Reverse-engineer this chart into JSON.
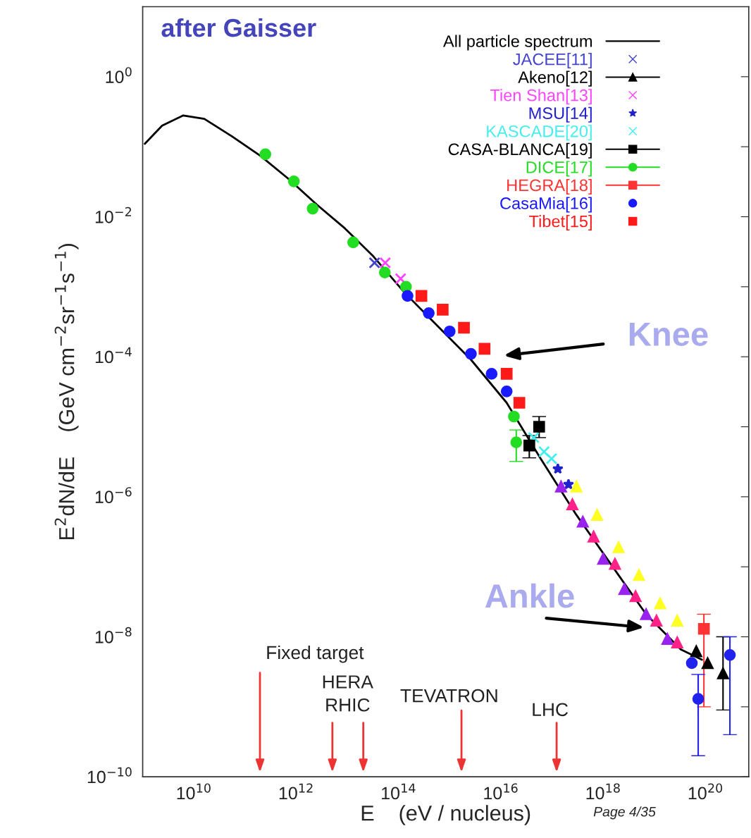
{
  "chart_data": {
    "type": "scatter",
    "title": "after Gaisser",
    "xlabel": "E    (eV / nucleus)",
    "ylabel": "E$^{2}$dN/dE    (GeV cm$^{−2}$sr$^{−1}$s$^{−1}$)",
    "log": "xy",
    "grid": false,
    "legend": "top right",
    "xlim": [
      1000000000.0,
      7e+20
    ],
    "ylim": [
      1e-10,
      10
    ],
    "xticks": [
      {
        "value": 10000000000.0,
        "label": "10$^{10}$"
      },
      {
        "value": 1000000000000.0,
        "label": "10$^{12}$"
      },
      {
        "value": 100000000000000.0,
        "label": "10$^{14}$"
      },
      {
        "value": 1e+16,
        "label": "10$^{16}$"
      },
      {
        "value": 1e+18,
        "label": "10$^{18}$"
      },
      {
        "value": 1e+20,
        "label": "10$^{20}$"
      }
    ],
    "yticks": [
      {
        "value": 1e-10,
        "label": "10$^{−10}$"
      },
      {
        "value": 1e-09,
        "label": null
      },
      {
        "value": 1e-08,
        "label": "10$^{−8}$"
      },
      {
        "value": 1e-07,
        "label": null
      },
      {
        "value": 1e-06,
        "label": "10$^{−6}$"
      },
      {
        "value": 1e-05,
        "label": null
      },
      {
        "value": 0.0001,
        "label": "10$^{−4}$"
      },
      {
        "value": 0.001,
        "label": null
      },
      {
        "value": 0.01,
        "label": "10$^{−2}$"
      },
      {
        "value": 0.1,
        "label": null
      },
      {
        "value": 1,
        "label": "10$^{0}$"
      }
    ],
    "series": [
      {
        "name": "All particle spectrum",
        "type": "line",
        "color": "#000000",
        "marker": "none",
        "line_style": "solid",
        "x": [
          1100000000.0,
          2400000000.0,
          6200000000.0,
          16000000000.0,
          56000000000.0,
          200000000000.0,
          700000000000.0,
          2500000000000.0,
          9000000000000.0,
          31000000000000.0,
          130000000000000.0,
          540000000000000.0,
          2600000000000000.0,
          1.3e+16,
          6e+16,
          3e+17,
          1.4e+18,
          6.9e+18,
          3.3e+19,
          8.5e+19
        ],
        "values": [
          0.11,
          0.2,
          0.28,
          0.25,
          0.14,
          0.074,
          0.035,
          0.015,
          0.0068,
          0.0028,
          0.00083,
          0.00029,
          9.1e-05,
          2.2e-05,
          3.5e-06,
          5.5e-07,
          1.1e-07,
          2.1e-08,
          6.6e-09,
          4.7e-09
        ]
      },
      {
        "name": "JACEE[11]",
        "color": "#4444cc",
        "marker": "cross",
        "x": [
          34000000000000.0
        ],
        "values": [
          0.0022
        ]
      },
      {
        "name": "Akeno[12]",
        "color": "#000000",
        "marker": "triangle",
        "x": [
          6.6e+19,
          1.1e+20,
          2.2e+20
        ],
        "values": [
          6.2e-09,
          4.2e-09,
          3e-09
        ],
        "errors": [
          null,
          null,
          [
            9e-10,
            1e-08
          ]
        ]
      },
      {
        "name": "Tien Shan[13]",
        "color": "#ff44ff",
        "marker": "cross",
        "x": [
          55000000000000.0,
          110000000000000.0
        ],
        "values": [
          0.0022,
          0.0013
        ]
      },
      {
        "name": "MSU[14]",
        "color": "#2222cc",
        "marker": "star",
        "x": [
          1.3e+17,
          2.1e+17
        ],
        "values": [
          2.5e-06,
          1.5e-06
        ]
      },
      {
        "name": "KASCADE[20]",
        "color": "#44eeee",
        "marker": "cross",
        "x": [
          4.4e+16,
          7e+16,
          9.8e+16
        ],
        "values": [
          7e-06,
          4.4e-06,
          3.5e-06
        ]
      },
      {
        "name": "CASA-BLANCA[19]",
        "color": "#000000",
        "marker": "square",
        "x": [
          5.6e+16,
          3.6e+16
        ],
        "values": [
          1e-05,
          5.4e-06
        ],
        "errors": [
          [
            7e-06,
            1.4e-05
          ],
          [
            3.6e-06,
            7.5e-06
          ]
        ]
      },
      {
        "name": "DICE[17]",
        "color": "#22dd22",
        "marker": "circle",
        "x": [
          250000000000.0,
          900000000000.0,
          2100000000000.0,
          13000000000000.0,
          54000000000000.0,
          140000000000000.0,
          1.8e+16,
          2e+16
        ],
        "values": [
          0.078,
          0.032,
          0.013,
          0.0043,
          0.0016,
          0.001,
          1.4e-05,
          6e-06
        ],
        "errors": [
          null,
          null,
          null,
          null,
          null,
          null,
          null,
          [
            3.2e-06,
            9e-06
          ]
        ]
      },
      {
        "name": "HEGRA[18]",
        "color": "#ff3333",
        "marker": "square",
        "x": [
          9.3e+19
        ],
        "values": [
          1.3e-08
        ],
        "errors": [
          [
            1e-09,
            2.1e-08
          ]
        ]
      },
      {
        "name": "CasaMia[16]",
        "color": "#1a1aff",
        "marker": "circle",
        "x": [
          150000000000000.0,
          390000000000000.0,
          1000000000000000.0,
          2600000000000000.0,
          6600000000000000.0,
          1.3e+16
        ],
        "values": [
          0.00074,
          0.00042,
          0.00023,
          0.00011,
          5.7e-05,
          3.2e-05
        ]
      },
      {
        "name": "Tibet[15]",
        "color": "#ff1a1a",
        "marker": "square",
        "x": [
          280000000000000.0,
          730000000000000.0,
          1900000000000000.0,
          4800000000000000.0,
          1.3e+16,
          2.3e+16
        ],
        "values": [
          0.00074,
          0.00047,
          0.00026,
          0.00013,
          5.7e-05,
          2.2e-05
        ]
      },
      {
        "color": "#ffff22",
        "marker": "triangle",
        "x": [
          3e+17,
          7.6e+17,
          2e+18,
          5e+18,
          1.3e+19,
          2.8e+19
        ],
        "values": [
          1.4e-06,
          5.5e-07,
          1.9e-07,
          7.6e-08,
          3e-08,
          1.7e-08
        ]
      },
      {
        "color": "#9922ee",
        "marker": "triangle",
        "x": [
          1.5e+17,
          4e+17,
          1e+18,
          2.6e+18,
          6.9e+18,
          1.8e+19
        ],
        "values": [
          1.4e-06,
          4.4e-07,
          1.3e-07,
          4.8e-08,
          2.1e-08,
          9.3e-09
        ]
      },
      {
        "color": "#ff2288",
        "marker": "triangle",
        "x": [
          2.5e+17,
          6.5e+17,
          1.7e+18,
          4.3e+18,
          1.1e+19,
          2.8e+19
        ],
        "values": [
          7.8e-07,
          2.7e-07,
          1.1e-07,
          3.8e-08,
          1.7e-08,
          8.3e-09
        ]
      },
      {
        "color": "#2222ee",
        "marker": "circle",
        "x": [
          5.4e+19,
          7.2e+19,
          3e+20
        ],
        "values": [
          4.2e-09,
          1.3e-09,
          5.5e-09
        ],
        "errors": [
          null,
          [
            2e-10,
            2.9e-09
          ],
          [
            4e-10,
            1e-08
          ]
        ]
      }
    ],
    "annotations": [
      "Knee",
      "Ankle",
      "Fixed target",
      "HERA",
      "RHIC",
      "TEVATRON",
      "LHC",
      "Page 4/35"
    ]
  }
}
